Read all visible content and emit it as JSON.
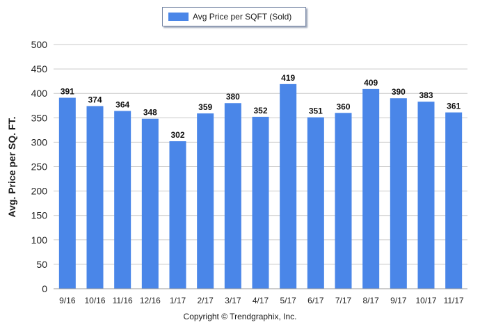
{
  "chart_data": {
    "type": "bar",
    "categories": [
      "9/16",
      "10/16",
      "11/16",
      "12/16",
      "1/17",
      "2/17",
      "3/17",
      "4/17",
      "5/17",
      "6/17",
      "7/17",
      "8/17",
      "9/17",
      "10/17",
      "11/17"
    ],
    "series": [
      {
        "name": "Avg Price per SQFT (Sold)",
        "values": [
          391,
          374,
          364,
          348,
          302,
          359,
          380,
          352,
          419,
          351,
          360,
          409,
          390,
          383,
          361
        ]
      }
    ],
    "ylabel": "Avg. Price per SQ. FT.",
    "xlabel": "",
    "ylim": [
      0,
      500
    ],
    "yticks": [
      0,
      50,
      100,
      150,
      200,
      250,
      300,
      350,
      400,
      450,
      500
    ],
    "grid": true,
    "legend_position": "top-center",
    "data_labels": true,
    "bar_color": "#4a86e8",
    "grid_color": "#c9c9c9"
  },
  "footer": {
    "copyright": "Copyright © Trendgraphix, Inc."
  }
}
